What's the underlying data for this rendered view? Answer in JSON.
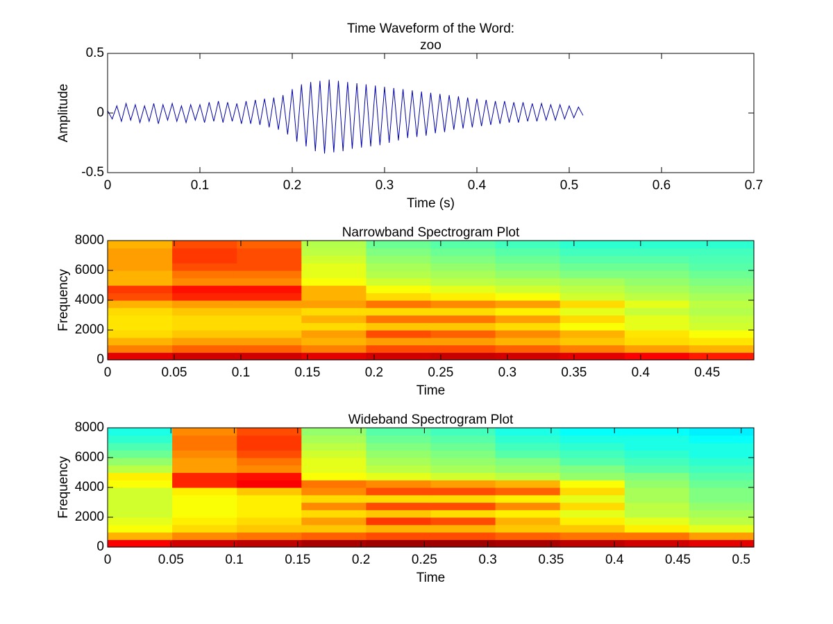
{
  "chart_data": [
    {
      "type": "line",
      "title": [
        "Time Waveform of the Word:",
        "zoo"
      ],
      "xlabel": "Time (s)",
      "ylabel": "Amplitude",
      "xlim": [
        0,
        0.7
      ],
      "xticks": [
        0,
        0.1,
        0.2,
        0.3,
        0.4,
        0.5,
        0.6,
        0.7
      ],
      "ylim": [
        -0.5,
        0.5
      ],
      "yticks": [
        -0.5,
        0,
        0.5
      ],
      "color": "#0000aa",
      "x": [
        0,
        0.005,
        0.01,
        0.015,
        0.02,
        0.025,
        0.03,
        0.035,
        0.04,
        0.045,
        0.05,
        0.055,
        0.06,
        0.065,
        0.07,
        0.075,
        0.08,
        0.085,
        0.09,
        0.095,
        0.1,
        0.105,
        0.11,
        0.115,
        0.12,
        0.125,
        0.13,
        0.135,
        0.14,
        0.145,
        0.15,
        0.155,
        0.16,
        0.165,
        0.17,
        0.175,
        0.18,
        0.185,
        0.19,
        0.195,
        0.2,
        0.205,
        0.21,
        0.215,
        0.22,
        0.225,
        0.23,
        0.235,
        0.24,
        0.245,
        0.25,
        0.255,
        0.26,
        0.265,
        0.27,
        0.275,
        0.28,
        0.285,
        0.29,
        0.295,
        0.3,
        0.305,
        0.31,
        0.315,
        0.32,
        0.325,
        0.33,
        0.335,
        0.34,
        0.345,
        0.35,
        0.355,
        0.36,
        0.365,
        0.37,
        0.375,
        0.38,
        0.385,
        0.39,
        0.395,
        0.4,
        0.405,
        0.41,
        0.415,
        0.42,
        0.425,
        0.43,
        0.435,
        0.44,
        0.445,
        0.45,
        0.455,
        0.46,
        0.465,
        0.47,
        0.475,
        0.48,
        0.485,
        0.49,
        0.495,
        0.5,
        0.505,
        0.51,
        0.515
      ],
      "values": [
        0.02,
        -0.05,
        0.06,
        -0.07,
        0.08,
        -0.06,
        0.07,
        -0.08,
        0.06,
        -0.07,
        0.08,
        -0.09,
        0.07,
        -0.06,
        0.08,
        -0.07,
        0.06,
        -0.08,
        0.07,
        -0.06,
        0.07,
        -0.08,
        0.09,
        -0.07,
        0.1,
        -0.08,
        0.09,
        -0.07,
        0.08,
        -0.09,
        0.1,
        -0.09,
        0.11,
        -0.1,
        0.12,
        -0.12,
        0.13,
        -0.14,
        0.15,
        -0.18,
        0.2,
        -0.24,
        0.24,
        -0.28,
        0.26,
        -0.32,
        0.27,
        -0.34,
        0.28,
        -0.33,
        0.27,
        -0.32,
        0.26,
        -0.3,
        0.25,
        -0.29,
        0.24,
        -0.28,
        0.23,
        -0.27,
        0.22,
        -0.25,
        0.21,
        -0.23,
        0.2,
        -0.21,
        0.19,
        -0.2,
        0.18,
        -0.19,
        0.17,
        -0.17,
        0.16,
        -0.16,
        0.15,
        -0.14,
        0.14,
        -0.13,
        0.13,
        -0.12,
        0.12,
        -0.11,
        0.11,
        -0.1,
        0.1,
        -0.09,
        0.1,
        -0.08,
        0.09,
        -0.08,
        0.09,
        -0.07,
        0.08,
        -0.07,
        0.08,
        -0.06,
        0.07,
        -0.06,
        0.07,
        -0.05,
        0.06,
        -0.04,
        0.05,
        -0.02
      ]
    },
    {
      "type": "heatmap",
      "title": [
        "Narrowband Spectrogram Plot"
      ],
      "xlabel": "Time",
      "ylabel": "Frequency",
      "colormap": "jet",
      "xlim": [
        0,
        0.485
      ],
      "xticks": [
        0,
        0.05,
        0.1,
        0.15,
        0.2,
        0.25,
        0.3,
        0.35,
        0.4,
        0.45
      ],
      "ylim": [
        0,
        8000
      ],
      "yticks": [
        0,
        2000,
        4000,
        6000,
        8000
      ],
      "z": [
        [
          0.9,
          0.92,
          0.92,
          0.9,
          0.92,
          0.93,
          0.92,
          0.9,
          0.88,
          0.85
        ],
        [
          0.75,
          0.78,
          0.78,
          0.75,
          0.8,
          0.8,
          0.78,
          0.75,
          0.72,
          0.7
        ],
        [
          0.7,
          0.72,
          0.72,
          0.7,
          0.72,
          0.72,
          0.7,
          0.68,
          0.66,
          0.65
        ],
        [
          0.66,
          0.68,
          0.68,
          0.72,
          0.8,
          0.78,
          0.74,
          0.7,
          0.65,
          0.62
        ],
        [
          0.65,
          0.66,
          0.66,
          0.66,
          0.68,
          0.68,
          0.66,
          0.62,
          0.6,
          0.58
        ],
        [
          0.65,
          0.66,
          0.66,
          0.7,
          0.76,
          0.76,
          0.72,
          0.66,
          0.6,
          0.57
        ],
        [
          0.66,
          0.68,
          0.68,
          0.66,
          0.66,
          0.66,
          0.64,
          0.6,
          0.57,
          0.55
        ],
        [
          0.7,
          0.72,
          0.72,
          0.72,
          0.76,
          0.74,
          0.72,
          0.66,
          0.6,
          0.56
        ],
        [
          0.8,
          0.84,
          0.84,
          0.7,
          0.66,
          0.64,
          0.62,
          0.58,
          0.56,
          0.54
        ],
        [
          0.82,
          0.86,
          0.86,
          0.7,
          0.62,
          0.6,
          0.58,
          0.56,
          0.54,
          0.52
        ],
        [
          0.7,
          0.74,
          0.74,
          0.62,
          0.58,
          0.56,
          0.55,
          0.54,
          0.52,
          0.5
        ],
        [
          0.7,
          0.76,
          0.76,
          0.6,
          0.55,
          0.54,
          0.52,
          0.5,
          0.5,
          0.48
        ],
        [
          0.72,
          0.8,
          0.8,
          0.6,
          0.54,
          0.52,
          0.5,
          0.48,
          0.48,
          0.46
        ],
        [
          0.72,
          0.82,
          0.8,
          0.58,
          0.52,
          0.5,
          0.48,
          0.46,
          0.46,
          0.45
        ],
        [
          0.72,
          0.82,
          0.8,
          0.56,
          0.5,
          0.48,
          0.46,
          0.44,
          0.44,
          0.44
        ],
        [
          0.7,
          0.8,
          0.78,
          0.55,
          0.48,
          0.46,
          0.44,
          0.42,
          0.42,
          0.42
        ]
      ]
    },
    {
      "type": "heatmap",
      "title": [
        "Wideband Spectrogram Plot"
      ],
      "xlabel": "Time",
      "ylabel": "Frequency",
      "colormap": "jet",
      "xlim": [
        0,
        0.51
      ],
      "xticks": [
        0,
        0.05,
        0.1,
        0.15,
        0.2,
        0.25,
        0.3,
        0.35,
        0.4,
        0.45,
        0.5
      ],
      "ylim": [
        0,
        8000
      ],
      "yticks": [
        0,
        2000,
        4000,
        6000,
        8000
      ],
      "z": [
        [
          0.88,
          0.92,
          0.94,
          0.96,
          0.97,
          0.97,
          0.96,
          0.94,
          0.92,
          0.9
        ],
        [
          0.7,
          0.74,
          0.76,
          0.78,
          0.8,
          0.8,
          0.78,
          0.76,
          0.76,
          0.72
        ],
        [
          0.62,
          0.66,
          0.68,
          0.68,
          0.7,
          0.7,
          0.68,
          0.68,
          0.64,
          0.6
        ],
        [
          0.6,
          0.64,
          0.66,
          0.72,
          0.82,
          0.8,
          0.7,
          0.64,
          0.6,
          0.56
        ],
        [
          0.58,
          0.62,
          0.64,
          0.66,
          0.68,
          0.66,
          0.64,
          0.6,
          0.56,
          0.54
        ],
        [
          0.58,
          0.62,
          0.64,
          0.74,
          0.8,
          0.8,
          0.74,
          0.66,
          0.56,
          0.52
        ],
        [
          0.58,
          0.62,
          0.64,
          0.66,
          0.66,
          0.66,
          0.64,
          0.6,
          0.54,
          0.5
        ],
        [
          0.58,
          0.64,
          0.68,
          0.74,
          0.8,
          0.8,
          0.78,
          0.66,
          0.54,
          0.5
        ],
        [
          0.62,
          0.84,
          0.88,
          0.76,
          0.74,
          0.72,
          0.7,
          0.62,
          0.52,
          0.48
        ],
        [
          0.64,
          0.84,
          0.86,
          0.62,
          0.6,
          0.58,
          0.56,
          0.52,
          0.5,
          0.46
        ],
        [
          0.56,
          0.72,
          0.74,
          0.6,
          0.56,
          0.54,
          0.52,
          0.5,
          0.46,
          0.44
        ],
        [
          0.52,
          0.72,
          0.76,
          0.6,
          0.54,
          0.52,
          0.5,
          0.46,
          0.44,
          0.42
        ],
        [
          0.48,
          0.74,
          0.8,
          0.58,
          0.52,
          0.5,
          0.46,
          0.44,
          0.42,
          0.4
        ],
        [
          0.45,
          0.76,
          0.82,
          0.56,
          0.5,
          0.48,
          0.44,
          0.42,
          0.4,
          0.4
        ],
        [
          0.42,
          0.76,
          0.82,
          0.54,
          0.48,
          0.46,
          0.42,
          0.4,
          0.4,
          0.38
        ],
        [
          0.4,
          0.74,
          0.8,
          0.52,
          0.46,
          0.44,
          0.4,
          0.38,
          0.38,
          0.36
        ]
      ]
    }
  ]
}
